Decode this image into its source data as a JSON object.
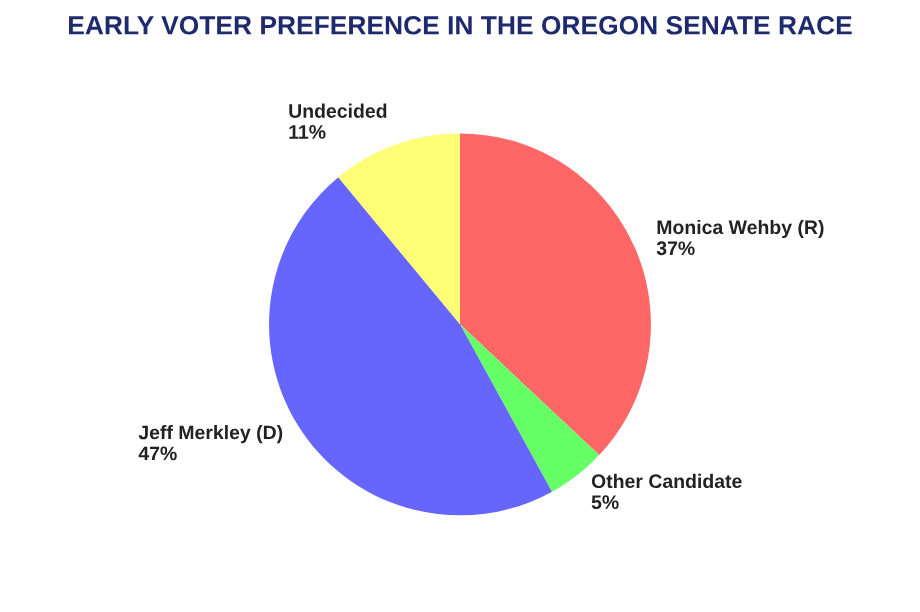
{
  "chart_data": {
    "type": "pie",
    "title": "EARLY VOTER PREFERENCE IN THE OREGON SENATE RACE",
    "categories": [
      "Monica Wehby (R)",
      "Other Candidate",
      "Jeff Merkley (D)",
      "Undecided"
    ],
    "values": [
      37,
      5,
      47,
      11
    ],
    "value_labels": [
      "37%",
      "5%",
      "47%",
      "11%"
    ],
    "colors": [
      "#ff6666",
      "#66ff66",
      "#6666ff",
      "#ffff77"
    ]
  }
}
